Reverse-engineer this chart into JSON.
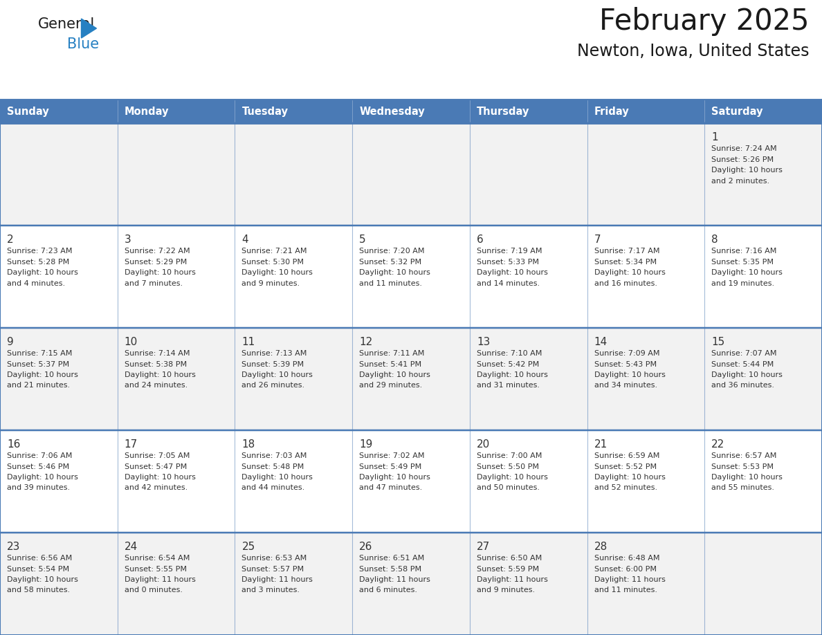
{
  "title": "February 2025",
  "subtitle": "Newton, Iowa, United States",
  "header_bg_color": "#4a7ab5",
  "header_text_color": "#ffffff",
  "cell_bg_even": "#f2f2f2",
  "cell_bg_odd": "#ffffff",
  "border_color": "#4a7ab5",
  "day_number_color": "#333333",
  "cell_text_color": "#333333",
  "days_of_week": [
    "Sunday",
    "Monday",
    "Tuesday",
    "Wednesday",
    "Thursday",
    "Friday",
    "Saturday"
  ],
  "weeks": [
    [
      {
        "day": null,
        "sunrise": null,
        "sunset": null,
        "daylight1": null,
        "daylight2": null
      },
      {
        "day": null,
        "sunrise": null,
        "sunset": null,
        "daylight1": null,
        "daylight2": null
      },
      {
        "day": null,
        "sunrise": null,
        "sunset": null,
        "daylight1": null,
        "daylight2": null
      },
      {
        "day": null,
        "sunrise": null,
        "sunset": null,
        "daylight1": null,
        "daylight2": null
      },
      {
        "day": null,
        "sunrise": null,
        "sunset": null,
        "daylight1": null,
        "daylight2": null
      },
      {
        "day": null,
        "sunrise": null,
        "sunset": null,
        "daylight1": null,
        "daylight2": null
      },
      {
        "day": "1",
        "sunrise": "Sunrise: 7:24 AM",
        "sunset": "Sunset: 5:26 PM",
        "daylight1": "Daylight: 10 hours",
        "daylight2": "and 2 minutes."
      }
    ],
    [
      {
        "day": "2",
        "sunrise": "Sunrise: 7:23 AM",
        "sunset": "Sunset: 5:28 PM",
        "daylight1": "Daylight: 10 hours",
        "daylight2": "and 4 minutes."
      },
      {
        "day": "3",
        "sunrise": "Sunrise: 7:22 AM",
        "sunset": "Sunset: 5:29 PM",
        "daylight1": "Daylight: 10 hours",
        "daylight2": "and 7 minutes."
      },
      {
        "day": "4",
        "sunrise": "Sunrise: 7:21 AM",
        "sunset": "Sunset: 5:30 PM",
        "daylight1": "Daylight: 10 hours",
        "daylight2": "and 9 minutes."
      },
      {
        "day": "5",
        "sunrise": "Sunrise: 7:20 AM",
        "sunset": "Sunset: 5:32 PM",
        "daylight1": "Daylight: 10 hours",
        "daylight2": "and 11 minutes."
      },
      {
        "day": "6",
        "sunrise": "Sunrise: 7:19 AM",
        "sunset": "Sunset: 5:33 PM",
        "daylight1": "Daylight: 10 hours",
        "daylight2": "and 14 minutes."
      },
      {
        "day": "7",
        "sunrise": "Sunrise: 7:17 AM",
        "sunset": "Sunset: 5:34 PM",
        "daylight1": "Daylight: 10 hours",
        "daylight2": "and 16 minutes."
      },
      {
        "day": "8",
        "sunrise": "Sunrise: 7:16 AM",
        "sunset": "Sunset: 5:35 PM",
        "daylight1": "Daylight: 10 hours",
        "daylight2": "and 19 minutes."
      }
    ],
    [
      {
        "day": "9",
        "sunrise": "Sunrise: 7:15 AM",
        "sunset": "Sunset: 5:37 PM",
        "daylight1": "Daylight: 10 hours",
        "daylight2": "and 21 minutes."
      },
      {
        "day": "10",
        "sunrise": "Sunrise: 7:14 AM",
        "sunset": "Sunset: 5:38 PM",
        "daylight1": "Daylight: 10 hours",
        "daylight2": "and 24 minutes."
      },
      {
        "day": "11",
        "sunrise": "Sunrise: 7:13 AM",
        "sunset": "Sunset: 5:39 PM",
        "daylight1": "Daylight: 10 hours",
        "daylight2": "and 26 minutes."
      },
      {
        "day": "12",
        "sunrise": "Sunrise: 7:11 AM",
        "sunset": "Sunset: 5:41 PM",
        "daylight1": "Daylight: 10 hours",
        "daylight2": "and 29 minutes."
      },
      {
        "day": "13",
        "sunrise": "Sunrise: 7:10 AM",
        "sunset": "Sunset: 5:42 PM",
        "daylight1": "Daylight: 10 hours",
        "daylight2": "and 31 minutes."
      },
      {
        "day": "14",
        "sunrise": "Sunrise: 7:09 AM",
        "sunset": "Sunset: 5:43 PM",
        "daylight1": "Daylight: 10 hours",
        "daylight2": "and 34 minutes."
      },
      {
        "day": "15",
        "sunrise": "Sunrise: 7:07 AM",
        "sunset": "Sunset: 5:44 PM",
        "daylight1": "Daylight: 10 hours",
        "daylight2": "and 36 minutes."
      }
    ],
    [
      {
        "day": "16",
        "sunrise": "Sunrise: 7:06 AM",
        "sunset": "Sunset: 5:46 PM",
        "daylight1": "Daylight: 10 hours",
        "daylight2": "and 39 minutes."
      },
      {
        "day": "17",
        "sunrise": "Sunrise: 7:05 AM",
        "sunset": "Sunset: 5:47 PM",
        "daylight1": "Daylight: 10 hours",
        "daylight2": "and 42 minutes."
      },
      {
        "day": "18",
        "sunrise": "Sunrise: 7:03 AM",
        "sunset": "Sunset: 5:48 PM",
        "daylight1": "Daylight: 10 hours",
        "daylight2": "and 44 minutes."
      },
      {
        "day": "19",
        "sunrise": "Sunrise: 7:02 AM",
        "sunset": "Sunset: 5:49 PM",
        "daylight1": "Daylight: 10 hours",
        "daylight2": "and 47 minutes."
      },
      {
        "day": "20",
        "sunrise": "Sunrise: 7:00 AM",
        "sunset": "Sunset: 5:50 PM",
        "daylight1": "Daylight: 10 hours",
        "daylight2": "and 50 minutes."
      },
      {
        "day": "21",
        "sunrise": "Sunrise: 6:59 AM",
        "sunset": "Sunset: 5:52 PM",
        "daylight1": "Daylight: 10 hours",
        "daylight2": "and 52 minutes."
      },
      {
        "day": "22",
        "sunrise": "Sunrise: 6:57 AM",
        "sunset": "Sunset: 5:53 PM",
        "daylight1": "Daylight: 10 hours",
        "daylight2": "and 55 minutes."
      }
    ],
    [
      {
        "day": "23",
        "sunrise": "Sunrise: 6:56 AM",
        "sunset": "Sunset: 5:54 PM",
        "daylight1": "Daylight: 10 hours",
        "daylight2": "and 58 minutes."
      },
      {
        "day": "24",
        "sunrise": "Sunrise: 6:54 AM",
        "sunset": "Sunset: 5:55 PM",
        "daylight1": "Daylight: 11 hours",
        "daylight2": "and 0 minutes."
      },
      {
        "day": "25",
        "sunrise": "Sunrise: 6:53 AM",
        "sunset": "Sunset: 5:57 PM",
        "daylight1": "Daylight: 11 hours",
        "daylight2": "and 3 minutes."
      },
      {
        "day": "26",
        "sunrise": "Sunrise: 6:51 AM",
        "sunset": "Sunset: 5:58 PM",
        "daylight1": "Daylight: 11 hours",
        "daylight2": "and 6 minutes."
      },
      {
        "day": "27",
        "sunrise": "Sunrise: 6:50 AM",
        "sunset": "Sunset: 5:59 PM",
        "daylight1": "Daylight: 11 hours",
        "daylight2": "and 9 minutes."
      },
      {
        "day": "28",
        "sunrise": "Sunrise: 6:48 AM",
        "sunset": "Sunset: 6:00 PM",
        "daylight1": "Daylight: 11 hours",
        "daylight2": "and 11 minutes."
      },
      {
        "day": null,
        "sunrise": null,
        "sunset": null,
        "daylight1": null,
        "daylight2": null
      }
    ]
  ],
  "general_color": "#1a1a1a",
  "blue_color": "#2680c2",
  "triangle_color": "#2680c2"
}
